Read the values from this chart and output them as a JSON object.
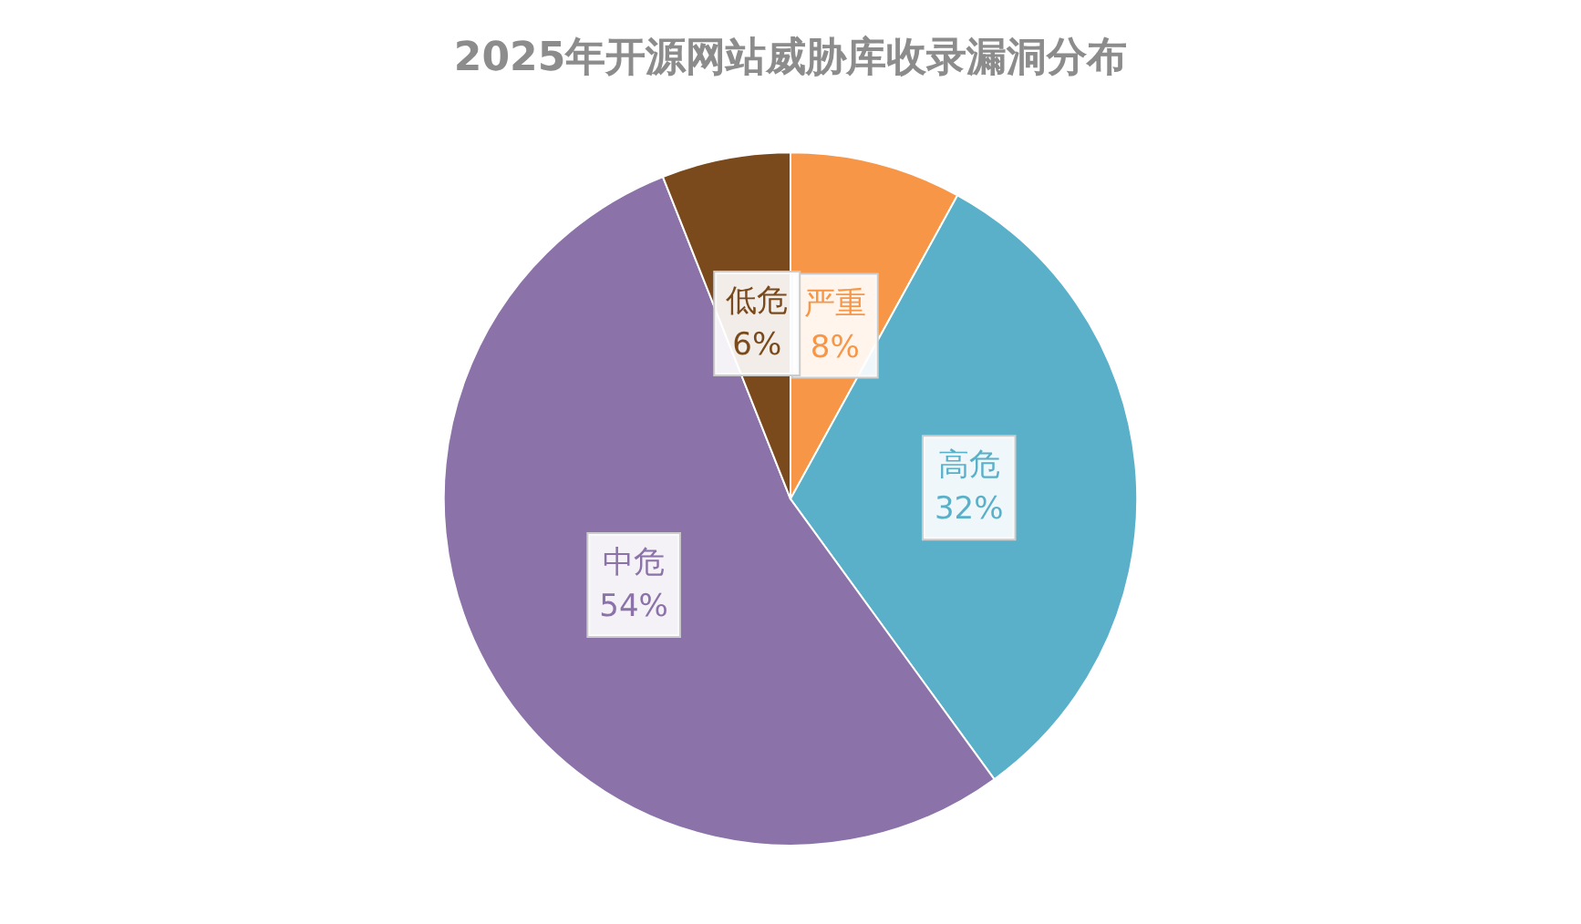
{
  "chart_data": {
    "type": "pie",
    "title": "2025年开源网站威胁库收录漏洞分布",
    "categories": [
      "严重",
      "高危",
      "中危",
      "低危"
    ],
    "values": [
      8,
      32,
      54,
      6
    ],
    "colors": [
      "#f79646",
      "#5ab0c9",
      "#8b72a8",
      "#7a4a1c"
    ],
    "value_labels": [
      "8%",
      "32%",
      "54%",
      "6%"
    ]
  }
}
